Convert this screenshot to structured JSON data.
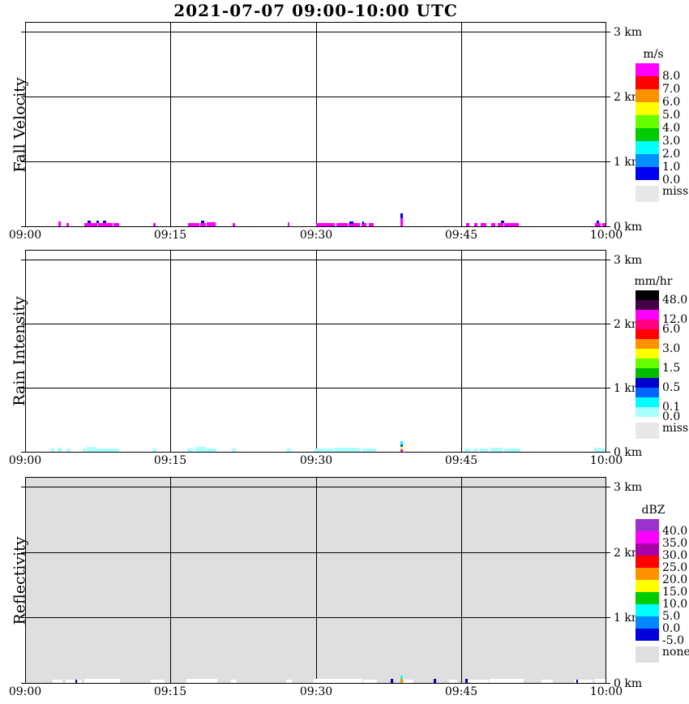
{
  "title": "2021-07-07  09:00-10:00 UTC",
  "chart_data": [
    {
      "type": "heatmap",
      "panel_label": "Fall Velocity",
      "x_ticks": [
        "09:00",
        "09:15",
        "09:30",
        "09:45",
        "10:00"
      ],
      "x_range_minutes": [
        0,
        60
      ],
      "y_ticks_top_to_bottom": [
        "3 km",
        "2 km",
        "1 km",
        "0 km"
      ],
      "y_range_km": [
        0,
        3.16
      ],
      "grid": true,
      "plot_bg": "#FFFFFF",
      "legend": {
        "title": "m/s",
        "blocks": [
          "#FF00FF",
          "#FF0000",
          "#FF9100",
          "#FFFF00",
          "#66FF00",
          "#00CC00",
          "#00FFFF",
          "#0090FF",
          "#0000EE"
        ],
        "labels": [
          {
            "text": "8.0",
            "after_block": 1
          },
          {
            "text": "7.0",
            "after_block": 2
          },
          {
            "text": "6.0",
            "after_block": 3
          },
          {
            "text": "5.0",
            "after_block": 4
          },
          {
            "text": "4.0",
            "after_block": 5
          },
          {
            "text": "3.0",
            "after_block": 6
          },
          {
            "text": "2.0",
            "after_block": 7
          },
          {
            "text": "1.0",
            "after_block": 8
          },
          {
            "text": "0.0",
            "after_block": 9
          }
        ],
        "missing": {
          "label": "miss",
          "color": "#E8E8E8"
        }
      },
      "marks": [
        {
          "t0": 3.35,
          "t1": 3.6,
          "yb": 1,
          "h": 6,
          "color": "#FF00FF"
        },
        {
          "t0": 4.2,
          "t1": 4.45,
          "yb": 1,
          "h": 4,
          "color": "#FF00FF"
        },
        {
          "t0": 6.0,
          "t1": 6.55,
          "yb": 1,
          "h": 4,
          "color": "#FF00FF"
        },
        {
          "t0": 6.65,
          "t1": 7.4,
          "yb": 1,
          "h": 4,
          "color": "#FF00FF"
        },
        {
          "t0": 7.5,
          "t1": 9.0,
          "yb": 1,
          "h": 4,
          "color": "#FF00FF"
        },
        {
          "t0": 9.05,
          "t1": 9.6,
          "yb": 1,
          "h": 4,
          "color": "#FF00FF"
        },
        {
          "t0": 6.35,
          "t1": 6.7,
          "yb": 5,
          "h": 3,
          "color": "#0000EE"
        },
        {
          "t0": 7.3,
          "t1": 7.55,
          "yb": 5,
          "h": 3,
          "color": "#0000EE"
        },
        {
          "t0": 8.0,
          "t1": 8.3,
          "yb": 5,
          "h": 3,
          "color": "#0000EE"
        },
        {
          "t0": 13.15,
          "t1": 13.4,
          "yb": 1,
          "h": 4,
          "color": "#FF00FF"
        },
        {
          "t0": 16.8,
          "t1": 18.0,
          "yb": 1,
          "h": 4,
          "color": "#FF00FF"
        },
        {
          "t0": 18.05,
          "t1": 18.65,
          "yb": 1,
          "h": 4,
          "color": "#FF00FF"
        },
        {
          "t0": 18.1,
          "t1": 18.45,
          "yb": 5,
          "h": 3,
          "color": "#0000EE"
        },
        {
          "t0": 18.7,
          "t1": 19.6,
          "yb": 1,
          "h": 5,
          "color": "#FF00FF"
        },
        {
          "t0": 21.4,
          "t1": 21.65,
          "yb": 1,
          "h": 4,
          "color": "#FF00FF"
        },
        {
          "t0": 27.1,
          "t1": 27.3,
          "yb": 1,
          "h": 5,
          "color": "#FF00FF"
        },
        {
          "t0": 30.0,
          "t1": 31.9,
          "yb": 1,
          "h": 4,
          "color": "#FF00FF"
        },
        {
          "t0": 32.1,
          "t1": 33.3,
          "yb": 1,
          "h": 4,
          "color": "#FF00FF"
        },
        {
          "t0": 33.4,
          "t1": 34.6,
          "yb": 1,
          "h": 4,
          "color": "#FF00FF"
        },
        {
          "t0": 33.5,
          "t1": 33.9,
          "yb": 4,
          "h": 3,
          "color": "#0000EE"
        },
        {
          "t0": 34.75,
          "t1": 35.25,
          "yb": 1,
          "h": 4,
          "color": "#FF00FF"
        },
        {
          "t0": 34.85,
          "t1": 35.05,
          "yb": 4,
          "h": 3,
          "color": "#0000EE"
        },
        {
          "t0": 35.5,
          "t1": 36.0,
          "yb": 1,
          "h": 4,
          "color": "#FF00FF"
        },
        {
          "t0": 38.75,
          "t1": 39.0,
          "yb": 1,
          "h": 10,
          "color": "#FF00FF"
        },
        {
          "t0": 38.75,
          "t1": 39.0,
          "yb": 11,
          "h": 6,
          "color": "#0000EE"
        },
        {
          "t0": 45.55,
          "t1": 45.9,
          "yb": 1,
          "h": 4,
          "color": "#FF00FF"
        },
        {
          "t0": 46.4,
          "t1": 46.7,
          "yb": 1,
          "h": 4,
          "color": "#FF00FF"
        },
        {
          "t0": 47.1,
          "t1": 47.7,
          "yb": 1,
          "h": 4,
          "color": "#FF00FF"
        },
        {
          "t0": 48.2,
          "t1": 48.6,
          "yb": 1,
          "h": 4,
          "color": "#FF00FF"
        },
        {
          "t0": 48.8,
          "t1": 49.4,
          "yb": 1,
          "h": 4,
          "color": "#FF00FF"
        },
        {
          "t0": 49.2,
          "t1": 49.5,
          "yb": 5,
          "h": 3,
          "color": "#0000EE"
        },
        {
          "t0": 49.5,
          "t1": 51.0,
          "yb": 1,
          "h": 4,
          "color": "#FF00FF"
        },
        {
          "t0": 58.95,
          "t1": 59.5,
          "yb": 1,
          "h": 4,
          "color": "#FF00FF"
        },
        {
          "t0": 59.05,
          "t1": 59.3,
          "yb": 5,
          "h": 3,
          "color": "#0000EE"
        },
        {
          "t0": 59.65,
          "t1": 60.0,
          "yb": 1,
          "h": 4,
          "color": "#FF00FF"
        }
      ]
    },
    {
      "type": "heatmap",
      "panel_label": "Rain Intensity",
      "x_ticks": [
        "09:00",
        "09:15",
        "09:30",
        "09:45",
        "10:00"
      ],
      "x_range_minutes": [
        0,
        60
      ],
      "y_ticks_top_to_bottom": [
        "3 km",
        "2 km",
        "1 km",
        "0 km"
      ],
      "y_range_km": [
        0,
        3.16
      ],
      "grid": true,
      "plot_bg": "#FFFFFF",
      "legend": {
        "title": "mm/hr",
        "blocks": [
          "#000000",
          "#440044",
          "#FF00FF",
          "#FF0080",
          "#FF0000",
          "#FF9100",
          "#FFFF00",
          "#66FF00",
          "#00BB00",
          "#0000CC",
          "#0066FF",
          "#00FFFF",
          "#AAFFFF"
        ],
        "labels": [
          {
            "text": "48.0",
            "after_block": 1
          },
          {
            "text": "12.0",
            "after_block": 3
          },
          {
            "text": "6.0",
            "after_block": 4
          },
          {
            "text": "3.0",
            "after_block": 6
          },
          {
            "text": "1.5",
            "after_block": 8
          },
          {
            "text": "0.5",
            "after_block": 10
          },
          {
            "text": "0.1",
            "after_block": 12
          },
          {
            "text": "0.0",
            "after_block": 13
          }
        ],
        "missing": {
          "label": "miss",
          "color": "#E8E8E8"
        }
      },
      "marks": [
        {
          "t0": 2.6,
          "t1": 2.9,
          "yb": 1,
          "h": 4,
          "color": "#AAFFFF"
        },
        {
          "t0": 3.3,
          "t1": 3.7,
          "yb": 1,
          "h": 5,
          "color": "#AAFFFF"
        },
        {
          "t0": 4.2,
          "t1": 4.6,
          "yb": 1,
          "h": 4,
          "color": "#AAFFFF"
        },
        {
          "t0": 5.9,
          "t1": 6.25,
          "yb": 1,
          "h": 4,
          "color": "#AAFFFF"
        },
        {
          "t0": 6.3,
          "t1": 7.2,
          "yb": 1,
          "h": 6,
          "color": "#AAFFFF"
        },
        {
          "t0": 7.25,
          "t1": 9.7,
          "yb": 1,
          "h": 4,
          "color": "#AAFFFF"
        },
        {
          "t0": 13.1,
          "t1": 13.5,
          "yb": 1,
          "h": 4,
          "color": "#AAFFFF"
        },
        {
          "t0": 16.7,
          "t1": 17.4,
          "yb": 1,
          "h": 4,
          "color": "#AAFFFF"
        },
        {
          "t0": 17.5,
          "t1": 18.6,
          "yb": 1,
          "h": 6,
          "color": "#AAFFFF"
        },
        {
          "t0": 18.65,
          "t1": 19.7,
          "yb": 1,
          "h": 4,
          "color": "#AAFFFF"
        },
        {
          "t0": 21.3,
          "t1": 21.7,
          "yb": 1,
          "h": 4,
          "color": "#AAFFFF"
        },
        {
          "t0": 27.0,
          "t1": 27.45,
          "yb": 1,
          "h": 4,
          "color": "#AAFFFF"
        },
        {
          "t0": 29.9,
          "t1": 31.9,
          "yb": 1,
          "h": 4,
          "color": "#AAFFFF"
        },
        {
          "t0": 32.0,
          "t1": 34.7,
          "yb": 1,
          "h": 5,
          "color": "#AAFFFF"
        },
        {
          "t0": 34.8,
          "t1": 36.2,
          "yb": 1,
          "h": 4,
          "color": "#AAFFFF"
        },
        {
          "t0": 38.75,
          "t1": 39.0,
          "yb": 1,
          "h": 3,
          "color": "#FF00FF"
        },
        {
          "t0": 38.75,
          "t1": 39.0,
          "yb": 4,
          "h": 3,
          "color": "#FFFF00"
        },
        {
          "t0": 38.75,
          "t1": 39.0,
          "yb": 7,
          "h": 3,
          "color": "#0066FF"
        },
        {
          "t0": 38.75,
          "t1": 39.0,
          "yb": 10,
          "h": 4,
          "color": "#00FFFF"
        },
        {
          "t0": 45.4,
          "t1": 45.95,
          "yb": 1,
          "h": 4,
          "color": "#AAFFFF"
        },
        {
          "t0": 46.3,
          "t1": 46.8,
          "yb": 1,
          "h": 4,
          "color": "#AAFFFF"
        },
        {
          "t0": 47.0,
          "t1": 47.8,
          "yb": 1,
          "h": 4,
          "color": "#AAFFFF"
        },
        {
          "t0": 48.1,
          "t1": 49.4,
          "yb": 1,
          "h": 5,
          "color": "#AAFFFF"
        },
        {
          "t0": 49.5,
          "t1": 51.2,
          "yb": 1,
          "h": 4,
          "color": "#AAFFFF"
        },
        {
          "t0": 58.8,
          "t1": 59.5,
          "yb": 1,
          "h": 5,
          "color": "#AAFFFF"
        },
        {
          "t0": 59.6,
          "t1": 60.0,
          "yb": 1,
          "h": 4,
          "color": "#AAFFFF"
        }
      ]
    },
    {
      "type": "heatmap",
      "panel_label": "Reflectivity",
      "x_ticks": [
        "09:00",
        "09:15",
        "09:30",
        "09:45",
        "10:00"
      ],
      "x_range_minutes": [
        0,
        60
      ],
      "y_ticks_top_to_bottom": [
        "3 km",
        "2 km",
        "1 km",
        "0 km"
      ],
      "y_range_km": [
        0,
        3.16
      ],
      "grid": true,
      "plot_bg": "#DFDFDF",
      "legend": {
        "title": "dBZ",
        "blocks": [
          "#9933CC",
          "#FF00FF",
          "#AA00AA",
          "#FF0000",
          "#FF9100",
          "#FFFF00",
          "#00CC00",
          "#00FFFF",
          "#0088FF",
          "#0000DD"
        ],
        "labels": [
          {
            "text": "40.0",
            "after_block": 1
          },
          {
            "text": "35.0",
            "after_block": 2
          },
          {
            "text": "30.0",
            "after_block": 3
          },
          {
            "text": "25.0",
            "after_block": 4
          },
          {
            "text": "20.0",
            "after_block": 5
          },
          {
            "text": "15.0",
            "after_block": 6
          },
          {
            "text": "10.0",
            "after_block": 7
          },
          {
            "text": "5.0",
            "after_block": 8
          },
          {
            "text": "0.0",
            "after_block": 9
          },
          {
            "text": "-5.0",
            "after_block": 10
          }
        ],
        "missing": {
          "label": "none",
          "color": "#E0E0E0"
        }
      },
      "marks": [
        {
          "t0": 2.8,
          "t1": 3.8,
          "yb": 1,
          "h": 4,
          "color": "#FFFFFF"
        },
        {
          "t0": 4.1,
          "t1": 5.1,
          "yb": 1,
          "h": 4,
          "color": "#FFFFFF"
        },
        {
          "t0": 5.15,
          "t1": 5.35,
          "yb": 1,
          "h": 4,
          "color": "#0000BB"
        },
        {
          "t0": 5.4,
          "t1": 5.8,
          "yb": 1,
          "h": 4,
          "color": "#FFFFFF"
        },
        {
          "t0": 6.0,
          "t1": 9.7,
          "yb": 1,
          "h": 5,
          "color": "#FFFFFF"
        },
        {
          "t0": 12.9,
          "t1": 14.3,
          "yb": 1,
          "h": 4,
          "color": "#FFFFFF"
        },
        {
          "t0": 16.6,
          "t1": 19.8,
          "yb": 1,
          "h": 5,
          "color": "#FFFFFF"
        },
        {
          "t0": 21.2,
          "t1": 21.8,
          "yb": 1,
          "h": 4,
          "color": "#FFFFFF"
        },
        {
          "t0": 26.9,
          "t1": 27.5,
          "yb": 1,
          "h": 4,
          "color": "#FFFFFF"
        },
        {
          "t0": 29.8,
          "t1": 34.8,
          "yb": 1,
          "h": 5,
          "color": "#FFFFFF"
        },
        {
          "t0": 34.9,
          "t1": 36.3,
          "yb": 1,
          "h": 4,
          "color": "#FFFFFF"
        },
        {
          "t0": 37.8,
          "t1": 38.05,
          "yb": 1,
          "h": 5,
          "color": "#0000BB"
        },
        {
          "t0": 38.75,
          "t1": 39.0,
          "yb": 1,
          "h": 5,
          "color": "#FF9100"
        },
        {
          "t0": 38.75,
          "t1": 39.0,
          "yb": 6,
          "h": 4,
          "color": "#00FFFF"
        },
        {
          "t0": 39.1,
          "t1": 40.1,
          "yb": 1,
          "h": 4,
          "color": "#FFFFFF"
        },
        {
          "t0": 42.2,
          "t1": 42.45,
          "yb": 1,
          "h": 5,
          "color": "#0000BB"
        },
        {
          "t0": 43.8,
          "t1": 44.6,
          "yb": 1,
          "h": 4,
          "color": "#FFFFFF"
        },
        {
          "t0": 45.5,
          "t1": 45.75,
          "yb": 1,
          "h": 5,
          "color": "#0000BB"
        },
        {
          "t0": 45.8,
          "t1": 47.9,
          "yb": 1,
          "h": 4,
          "color": "#FFFFFF"
        },
        {
          "t0": 48.0,
          "t1": 51.5,
          "yb": 1,
          "h": 5,
          "color": "#FFFFFF"
        },
        {
          "t0": 53.4,
          "t1": 54.6,
          "yb": 1,
          "h": 4,
          "color": "#FFFFFF"
        },
        {
          "t0": 56.7,
          "t1": 58.6,
          "yb": 1,
          "h": 4,
          "color": "#FFFFFF"
        },
        {
          "t0": 56.95,
          "t1": 57.15,
          "yb": 1,
          "h": 4,
          "color": "#0000BB"
        },
        {
          "t0": 58.9,
          "t1": 60.0,
          "yb": 1,
          "h": 5,
          "color": "#FFFFFF"
        }
      ]
    }
  ]
}
